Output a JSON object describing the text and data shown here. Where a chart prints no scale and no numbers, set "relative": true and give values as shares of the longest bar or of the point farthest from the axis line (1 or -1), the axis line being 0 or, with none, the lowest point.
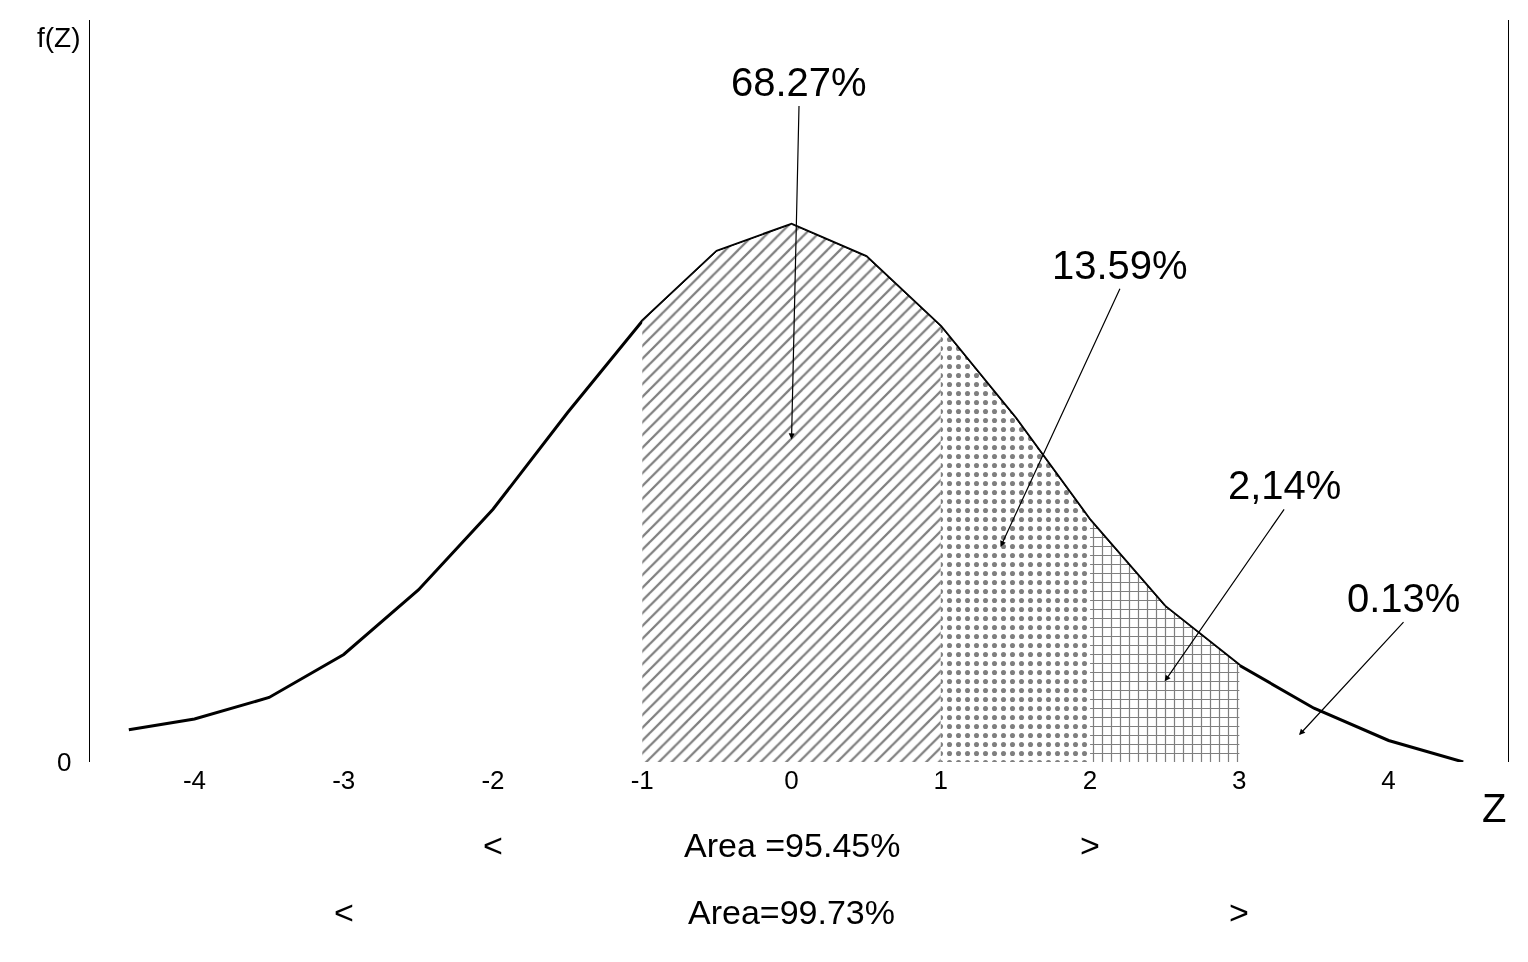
{
  "chart_data": {
    "type": "line",
    "relative": true,
    "x": [
      -4.44,
      -4,
      -3.5,
      -3,
      -2.5,
      -2,
      -1.5,
      -1,
      -0.5,
      0,
      0.5,
      1,
      1.5,
      2,
      2.5,
      3,
      3.5,
      4,
      4.5
    ],
    "series": [
      {
        "color": "#000000",
        "values": [
          0.06,
          0.08,
          0.12,
          0.2,
          0.32,
          0.47,
          0.65,
          0.82,
          0.95,
          1,
          0.94,
          0.81,
          0.64,
          0.45,
          0.29,
          0.18,
          0.1,
          0.04,
          0
        ]
      },
      {
        "type": "area",
        "color": "#000000",
        "x": [
          -1,
          -0.5,
          0,
          0.5,
          1
        ],
        "values": [
          0.82,
          0.95,
          1,
          0.94,
          0.81
        ]
      },
      {
        "type": "area",
        "color": "#000000",
        "x": [
          1,
          1.5,
          2
        ],
        "values": [
          0.81,
          0.64,
          0.45
        ]
      },
      {
        "type": "area",
        "color": "#000000",
        "x": [
          2,
          2.5,
          3
        ],
        "values": [
          0.45,
          0.29,
          0.18
        ]
      }
    ],
    "xlabel": "Z",
    "xlim": [
      -4.7,
      4.8
    ],
    "xticks": [
      -4,
      -3,
      -2,
      -1,
      0,
      1,
      2,
      3,
      4
    ],
    "annotations": [
      "0",
      "f(Z)",
      "68.27%",
      "13.59%",
      "2,14%",
      "0.13%",
      "Area =95.45%",
      "Area=99.73%",
      "<",
      ">",
      "<",
      ">"
    ],
    "marker": "none",
    "line_style": "solid"
  }
}
